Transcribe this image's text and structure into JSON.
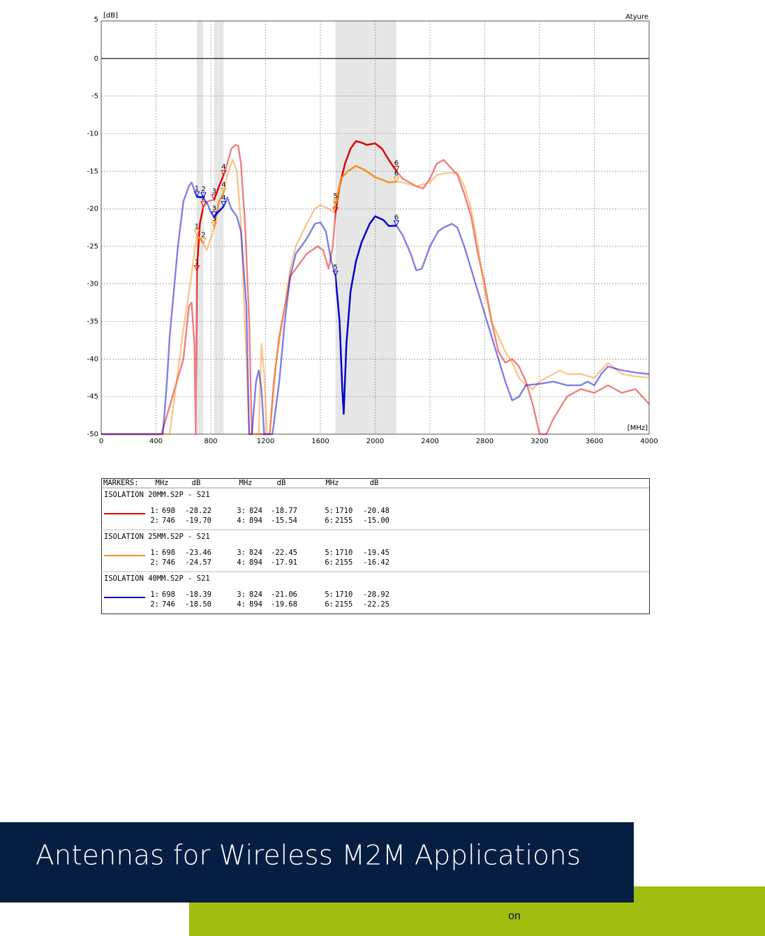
{
  "chart_data": {
    "type": "line",
    "corner_label": "Atyure",
    "y_unit": "[dB]",
    "x_unit": "[MHz]",
    "xlim": [
      0,
      4000
    ],
    "xticks": [
      0,
      400,
      800,
      1200,
      1600,
      2000,
      2400,
      2800,
      3200,
      3600,
      4000
    ],
    "ylim": [
      -50,
      5
    ],
    "yticks": [
      5,
      0,
      -5,
      -10,
      -15,
      -20,
      -25,
      -30,
      -35,
      -40,
      -45,
      -50
    ],
    "grid": true,
    "bands": [
      [
        698,
        746
      ],
      [
        824,
        894
      ],
      [
        1710,
        2155
      ]
    ],
    "marker_header": "MARKERS:",
    "marker_columns": [
      "MHz",
      "dB",
      "MHz",
      "dB",
      "MHz",
      "dB"
    ],
    "series": [
      {
        "name": "ISOLATION 20MM.S2P - S21",
        "color": "#e00000",
        "x": [
          0,
          440,
          600,
          640,
          660,
          680,
          690,
          698,
          720,
          746,
          780,
          824,
          860,
          894,
          920,
          950,
          980,
          1000,
          1020,
          1050,
          1080,
          1100,
          1200,
          1230,
          1260,
          1300,
          1340,
          1380,
          1420,
          1500,
          1580,
          1620,
          1660,
          1690,
          1710,
          1740,
          1780,
          1820,
          1860,
          1900,
          1940,
          2000,
          2050,
          2100,
          2155,
          2200,
          2300,
          2350,
          2400,
          2450,
          2500,
          2550,
          2600,
          2650,
          2700,
          2750,
          2800,
          2850,
          2900,
          2950,
          3000,
          3050,
          3100,
          3150,
          3200,
          3250,
          3300,
          3400,
          3500,
          3600,
          3700,
          3800,
          3900,
          4000
        ],
        "values": [
          -50,
          -50,
          -40,
          -33,
          -32.5,
          -38,
          -50,
          -28.2,
          -22,
          -19.7,
          -19,
          -18.8,
          -17,
          -15.5,
          -14,
          -12,
          -11.5,
          -11.6,
          -14,
          -22,
          -35,
          -50,
          -50,
          -50,
          -43,
          -37,
          -33,
          -29,
          -28,
          -26,
          -25,
          -25.5,
          -28,
          -25,
          -20.5,
          -17,
          -14,
          -12,
          -11,
          -11.2,
          -11.5,
          -11.3,
          -12,
          -13.5,
          -15,
          -16,
          -17,
          -17.3,
          -16,
          -14,
          -13.5,
          -14.5,
          -15.5,
          -18,
          -21,
          -26,
          -30,
          -35,
          -39,
          -40.5,
          -40,
          -41,
          -43,
          -46,
          -50,
          -50,
          -48,
          -45,
          -44,
          -44.5,
          -43.5,
          -44.5,
          -44,
          -46
        ],
        "markers": [
          {
            "n": "1",
            "label": "1:",
            "mhz": 698,
            "db": -28.22
          },
          {
            "n": "2",
            "label": "2:",
            "mhz": 746,
            "db": -19.7,
            "db_label": "-19.70"
          },
          {
            "n": "3",
            "label": "3:",
            "mhz": 824,
            "db": -18.77
          },
          {
            "n": "4",
            "label": "4:",
            "mhz": 894,
            "db": -15.54
          },
          {
            "n": "5",
            "label": "5:",
            "mhz": 1710,
            "db": -20.48
          },
          {
            "n": "6",
            "label": "6:",
            "mhz": 2155,
            "db": -15,
            "db_label": "-15.00"
          }
        ]
      },
      {
        "name": "ISOLATION 25MM.S2P - S21",
        "color": "#f7901e",
        "x": [
          0,
          440,
          500,
          600,
          650,
          698,
          746,
          770,
          800,
          824,
          860,
          894,
          920,
          960,
          990,
          1020,
          1060,
          1080,
          1150,
          1170,
          1190,
          1210,
          1230,
          1280,
          1340,
          1380,
          1420,
          1500,
          1560,
          1600,
          1660,
          1700,
          1710,
          1750,
          1800,
          1860,
          1920,
          2000,
          2060,
          2100,
          2155,
          2200,
          2300,
          2400,
          2450,
          2500,
          2600,
          2650,
          2700,
          2750,
          2800,
          2850,
          2900,
          2950,
          3000,
          3050,
          3100,
          3150,
          3200,
          3300,
          3350,
          3400,
          3500,
          3600,
          3700,
          3800,
          3900,
          4000
        ],
        "values": [
          -50,
          -50,
          -50,
          -36,
          -30,
          -23.5,
          -24.6,
          -25.5,
          -24,
          -22.5,
          -19,
          -17.9,
          -15.5,
          -13.5,
          -15,
          -22,
          -40,
          -50,
          -50,
          -38,
          -42,
          -50,
          -50,
          -40,
          -33,
          -28,
          -25,
          -22,
          -20,
          -19.5,
          -20,
          -20.5,
          -19.5,
          -16,
          -15,
          -14.3,
          -14.8,
          -15.8,
          -16.2,
          -16.5,
          -16.4,
          -16.5,
          -17,
          -16.5,
          -15.5,
          -15.3,
          -15.2,
          -17,
          -20,
          -25,
          -31,
          -35,
          -37,
          -39,
          -40.5,
          -42.5,
          -43.5,
          -44,
          -43,
          -42,
          -41.5,
          -42,
          -42,
          -42.5,
          -40.5,
          -42,
          -42.3,
          -42.5
        ],
        "markers": [
          {
            "n": "1",
            "label": "1:",
            "mhz": 698,
            "db": -23.46
          },
          {
            "n": "2",
            "label": "2:",
            "mhz": 746,
            "db": -24.57
          },
          {
            "n": "3",
            "label": "3:",
            "mhz": 824,
            "db": -22.45
          },
          {
            "n": "4",
            "label": "4:",
            "mhz": 894,
            "db": -17.91
          },
          {
            "n": "5",
            "label": "5:",
            "mhz": 1710,
            "db": -19.45
          },
          {
            "n": "6",
            "label": "6:",
            "mhz": 2155,
            "db": -16.42
          }
        ]
      },
      {
        "name": "ISOLATION 40MM.S2P - S21",
        "color": "#0000d0",
        "x": [
          0,
          450,
          480,
          500,
          560,
          600,
          640,
          660,
          698,
          746,
          780,
          800,
          824,
          850,
          894,
          920,
          950,
          990,
          1020,
          1060,
          1080,
          1100,
          1130,
          1150,
          1170,
          1190,
          1250,
          1300,
          1340,
          1380,
          1420,
          1500,
          1560,
          1600,
          1640,
          1680,
          1710,
          1740,
          1760,
          1770,
          1790,
          1820,
          1860,
          1900,
          1960,
          2000,
          2060,
          2100,
          2155,
          2200,
          2260,
          2300,
          2340,
          2400,
          2460,
          2500,
          2560,
          2600,
          2650,
          2700,
          2750,
          2800,
          2850,
          2900,
          2950,
          3000,
          3050,
          3100,
          3200,
          3300,
          3400,
          3500,
          3550,
          3600,
          3650,
          3700,
          3800,
          3900,
          4000
        ],
        "values": [
          -50,
          -50,
          -43,
          -37,
          -25,
          -19,
          -17,
          -16.5,
          -18.4,
          -18.5,
          -19.5,
          -20.5,
          -21.1,
          -20.5,
          -19.7,
          -18.5,
          -20,
          -21,
          -23,
          -33,
          -50,
          -50,
          -43,
          -41.5,
          -44,
          -50,
          -50,
          -43,
          -35,
          -29,
          -26,
          -24,
          -22,
          -21.8,
          -23,
          -27,
          -28.9,
          -35,
          -44,
          -47.3,
          -38,
          -31,
          -27,
          -24.5,
          -22,
          -21,
          -21.5,
          -22.3,
          -22.25,
          -23.5,
          -26,
          -28.2,
          -28,
          -25,
          -23,
          -22.5,
          -22,
          -22.5,
          -25,
          -28,
          -31,
          -34,
          -37,
          -40,
          -43,
          -45.5,
          -45,
          -43.5,
          -43.3,
          -43,
          -43.5,
          -43.5,
          -43,
          -43.5,
          -42,
          -41,
          -41.5,
          -41.8,
          -42
        ],
        "markers": [
          {
            "n": "1",
            "label": "1:",
            "mhz": 698,
            "db": -18.39
          },
          {
            "n": "2",
            "label": "2:",
            "mhz": 746,
            "db": -18.5,
            "db_label": "-18.50"
          },
          {
            "n": "3",
            "label": "3:",
            "mhz": 824,
            "db": -21.06
          },
          {
            "n": "4",
            "label": "4:",
            "mhz": 894,
            "db": -19.68
          },
          {
            "n": "5",
            "label": "5:",
            "mhz": 1710,
            "db": -28.92
          },
          {
            "n": "6",
            "label": "6:",
            "mhz": 2155,
            "db": -22.25
          }
        ]
      }
    ]
  },
  "footer": {
    "title": "Antennas for Wireless M2M Applications",
    "subtitle": "on"
  }
}
